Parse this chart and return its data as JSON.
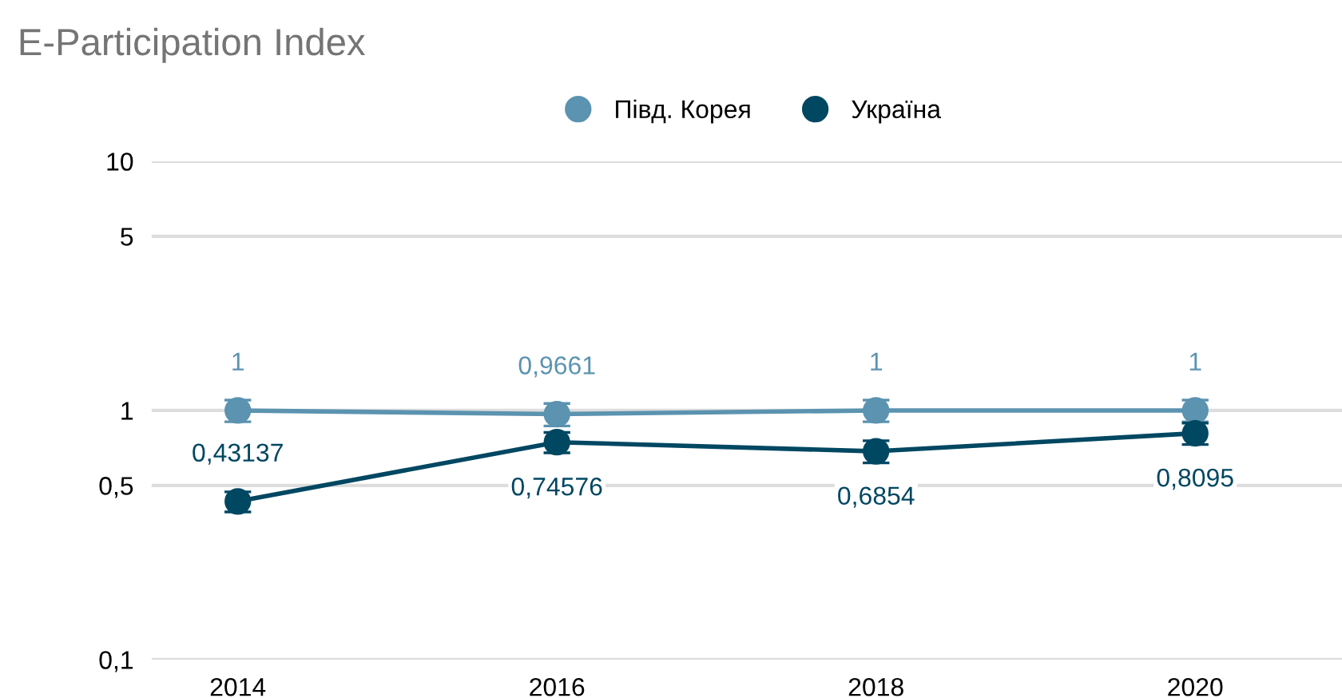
{
  "chart_data": {
    "type": "line",
    "title": "E-Participation Index",
    "categories": [
      "2014",
      "2016",
      "2018",
      "2020"
    ],
    "series": [
      {
        "name": "Півд. Корея",
        "color": "#5b93b0",
        "values": [
          1,
          0.9661,
          1,
          1
        ],
        "errors": [
          0.1,
          0.1,
          0.1,
          0.1
        ],
        "value_labels": [
          "1",
          "0,9661",
          "1",
          "1"
        ]
      },
      {
        "name": "Україна",
        "color": "#004762",
        "values": [
          0.43137,
          0.74576,
          0.6854,
          0.8095
        ],
        "errors": [
          0.04,
          0.07,
          0.07,
          0.08
        ],
        "value_labels": [
          "0,43137",
          "0,74576",
          "0,6854",
          "0,8095"
        ]
      }
    ],
    "log": true,
    "ylim": [
      0.1,
      10
    ],
    "yticks": [
      {
        "value": 0.1,
        "label": "0,1"
      },
      {
        "value": 0.5,
        "label": "0,5"
      },
      1,
      5,
      10
    ],
    "grid": "y",
    "legend": "top",
    "marker": "circle",
    "line_style": "solid"
  }
}
